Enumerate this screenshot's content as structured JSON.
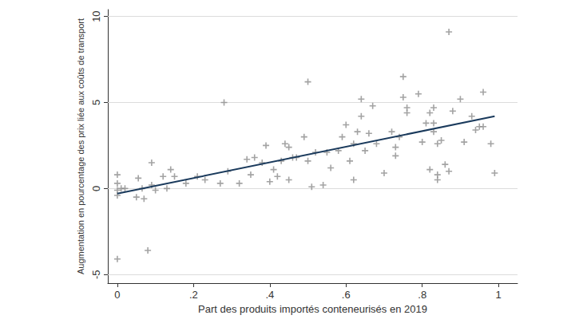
{
  "chart_data": {
    "type": "scatter",
    "x_label": "Part des produits importés conteneurisés en 2019",
    "y_label": "Augmentation en pourcentage des prix liée aux coûts de transport",
    "xlim": [
      -0.025,
      1.05
    ],
    "ylim": [
      -5.5,
      10.4
    ],
    "xticks": [
      0,
      {
        "value": 0.2,
        "label": ".2"
      },
      {
        "value": 0.4,
        "label": ".4"
      },
      {
        "value": 0.6,
        "label": ".6"
      },
      {
        "value": 0.8,
        "label": ".8"
      },
      1
    ],
    "yticks": [
      -5,
      0,
      5,
      10
    ],
    "grid": true,
    "series": [
      {
        "type": "scatter",
        "marker": "plus",
        "color": "#8c8c8c",
        "x": [
          0,
          0,
          0,
          0,
          0,
          0.01,
          0.02,
          0.05,
          0.055,
          0.065,
          0.07,
          0.08,
          0.09,
          0.09,
          0.1,
          0.12,
          0.13,
          0.14,
          0.15,
          0.18,
          0.21,
          0.23,
          0.27,
          0.28,
          0.29,
          0.32,
          0.34,
          0.35,
          0.36,
          0.38,
          0.39,
          0.4,
          0.41,
          0.42,
          0.43,
          0.44,
          0.45,
          0.45,
          0.46,
          0.47,
          0.49,
          0.5,
          0.5,
          0.51,
          0.52,
          0.54,
          0.55,
          0.56,
          0.58,
          0.59,
          0.6,
          0.61,
          0.62,
          0.62,
          0.63,
          0.64,
          0.64,
          0.65,
          0.66,
          0.67,
          0.68,
          0.7,
          0.72,
          0.73,
          0.73,
          0.74,
          0.75,
          0.75,
          0.76,
          0.76,
          0.79,
          0.8,
          0.81,
          0.82,
          0.82,
          0.83,
          0.83,
          0.83,
          0.84,
          0.84,
          0.84,
          0.85,
          0.86,
          0.87,
          0.87,
          0.88,
          0.9,
          0.91,
          0.93,
          0.94,
          0.95,
          0.96,
          0.96,
          0.98,
          0.99
        ],
        "values": [
          0.8,
          0.3,
          -0.1,
          -0.4,
          -4.1,
          0.0,
          0.0,
          -0.5,
          0.6,
          0.0,
          -0.6,
          -3.6,
          0.2,
          1.5,
          -0.1,
          0.7,
          0.0,
          1.1,
          0.7,
          0.3,
          0.7,
          0.5,
          0.3,
          5.0,
          1.0,
          0.3,
          1.7,
          0.8,
          1.8,
          1.5,
          2.5,
          0.4,
          1.1,
          0.7,
          1.6,
          2.6,
          2.4,
          0.5,
          1.8,
          1.8,
          3.0,
          1.6,
          6.2,
          0.1,
          2.1,
          0.2,
          2.1,
          1.2,
          2.2,
          3.0,
          3.7,
          1.6,
          0.5,
          2.6,
          3.3,
          4.2,
          5.2,
          2.2,
          3.2,
          4.8,
          2.6,
          0.9,
          3.3,
          2.4,
          1.9,
          3.0,
          6.5,
          5.3,
          4.4,
          4.7,
          5.5,
          2.7,
          3.8,
          4.4,
          1.1,
          4.7,
          3.8,
          3.3,
          2.6,
          0.8,
          0.5,
          2.8,
          1.4,
          9.1,
          1.0,
          4.5,
          5.2,
          2.7,
          4.2,
          3.4,
          3.6,
          5.6,
          3.6,
          2.6,
          0.9
        ]
      },
      {
        "type": "line",
        "line_style": "solid",
        "color": "#1a3a5c",
        "x": [
          0,
          0.99
        ],
        "values": [
          -0.3,
          4.2
        ]
      }
    ]
  }
}
